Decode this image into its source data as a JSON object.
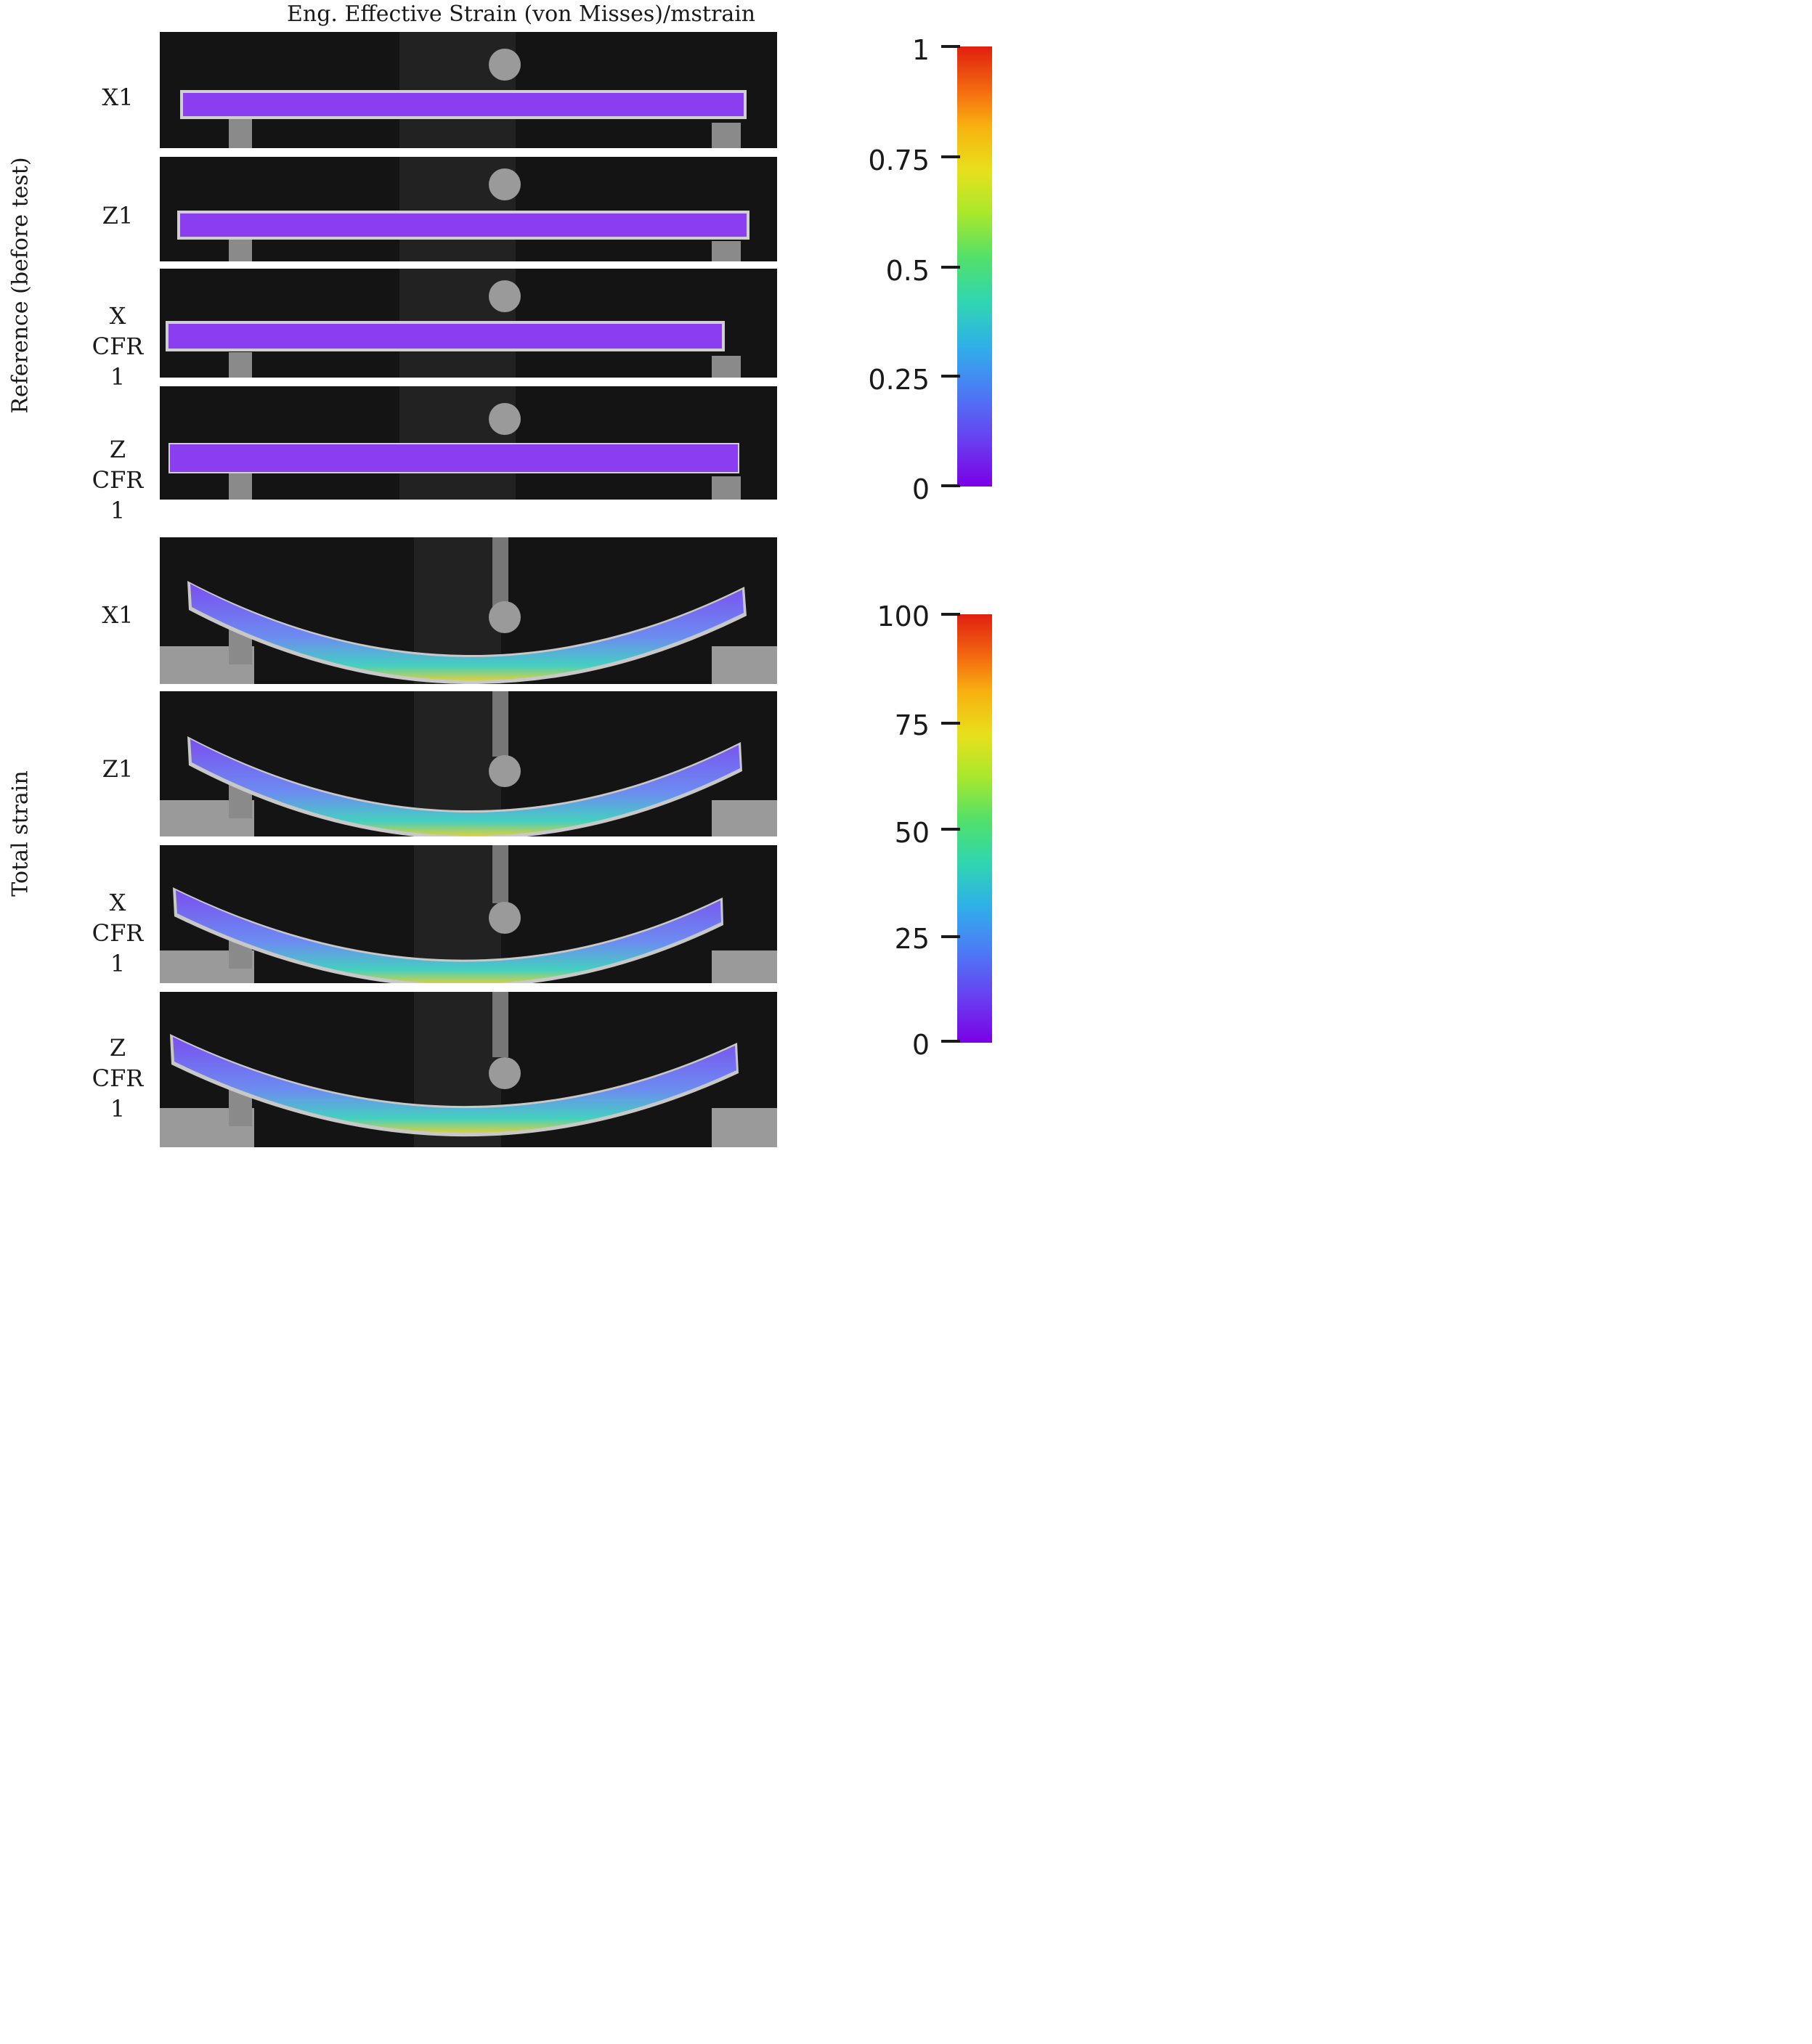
{
  "title": "Eng. Effective Strain (von Misses)/mstrain",
  "groups": [
    {
      "label": "Reference (before test)",
      "samples": [
        {
          "label_line1": "X1",
          "label_line2": ""
        },
        {
          "label_line1": "Z1",
          "label_line2": ""
        },
        {
          "label_line1": "X CFR",
          "label_line2": "1"
        },
        {
          "label_line1": "Z CFR",
          "label_line2": "1"
        }
      ]
    },
    {
      "label": "Total strain",
      "samples": [
        {
          "label_line1": "X1",
          "label_line2": ""
        },
        {
          "label_line1": "Z1",
          "label_line2": ""
        },
        {
          "label_line1": "X CFR",
          "label_line2": "1"
        },
        {
          "label_line1": "Z CFR",
          "label_line2": "1"
        }
      ]
    }
  ],
  "colorbars": [
    {
      "min": 0,
      "max": 1,
      "ticks": [
        "1",
        "0.75",
        "0.5",
        "0.25",
        "0"
      ],
      "colors": {
        "low": "#7a00e6",
        "high": "#e02010"
      }
    },
    {
      "min": 0,
      "max": 100,
      "ticks": [
        "100",
        "75",
        "50",
        "25",
        "0"
      ],
      "colors": {
        "low": "#7a00e6",
        "high": "#e02010"
      }
    }
  ]
}
